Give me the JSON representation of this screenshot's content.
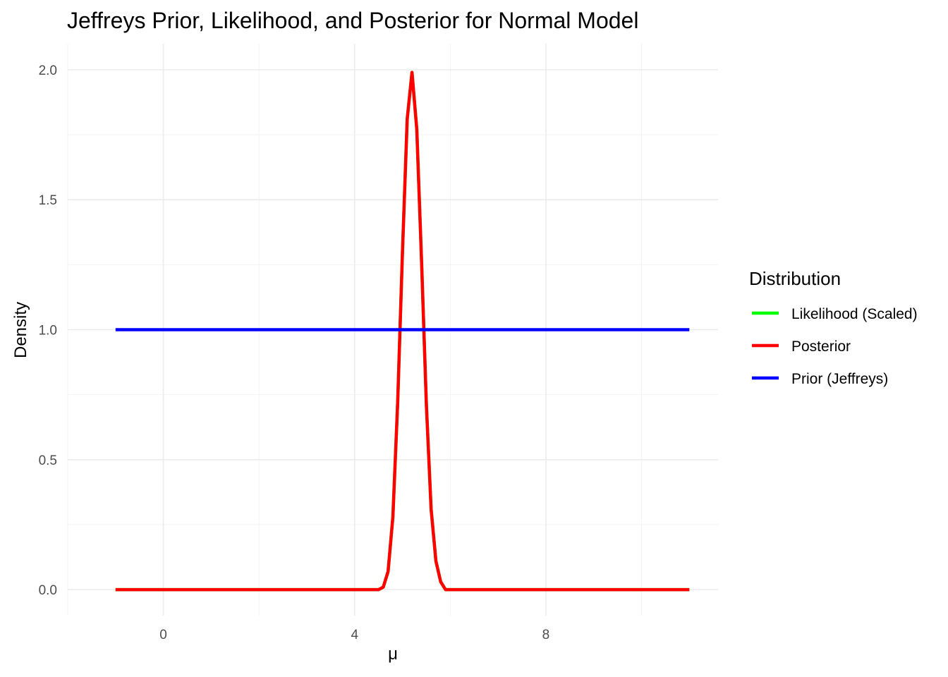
{
  "chart_data": {
    "type": "line",
    "title": "Jeffreys Prior, Likelihood, and Posterior for Normal Model",
    "xlabel": "μ",
    "ylabel": "Density",
    "xlim": [
      -2,
      11.6
    ],
    "ylim": [
      -0.1,
      2.1
    ],
    "x_ticks": [
      0,
      4,
      8
    ],
    "x_tick_labels": [
      "0",
      "4",
      "8"
    ],
    "y_ticks": [
      0.0,
      0.5,
      1.0,
      1.5,
      2.0
    ],
    "y_tick_labels": [
      "0.0",
      "0.5",
      "1.0",
      "1.5",
      "2.0"
    ],
    "grid": true,
    "legend": {
      "title": "Distribution",
      "position": "right",
      "entries": [
        "Likelihood (Scaled)",
        "Posterior",
        "Prior (Jeffreys)"
      ]
    },
    "series": [
      {
        "name": "Likelihood (Scaled)",
        "color": "#00ff00",
        "points": [
          [
            -1,
            0.0
          ],
          [
            4.5,
            0.0
          ],
          [
            4.6,
            0.01
          ],
          [
            4.7,
            0.07
          ],
          [
            4.8,
            0.28
          ],
          [
            4.9,
            0.72
          ],
          [
            5.0,
            1.3
          ],
          [
            5.1,
            1.81
          ],
          [
            5.2,
            1.99
          ],
          [
            5.3,
            1.77
          ],
          [
            5.4,
            1.26
          ],
          [
            5.5,
            0.71
          ],
          [
            5.6,
            0.31
          ],
          [
            5.7,
            0.11
          ],
          [
            5.8,
            0.03
          ],
          [
            5.9,
            0.0
          ],
          [
            11,
            0.0
          ]
        ]
      },
      {
        "name": "Posterior",
        "color": "#ff0000",
        "points": [
          [
            -1,
            0.0
          ],
          [
            4.5,
            0.0
          ],
          [
            4.6,
            0.01
          ],
          [
            4.7,
            0.07
          ],
          [
            4.8,
            0.28
          ],
          [
            4.9,
            0.72
          ],
          [
            5.0,
            1.3
          ],
          [
            5.1,
            1.81
          ],
          [
            5.2,
            1.99
          ],
          [
            5.3,
            1.77
          ],
          [
            5.4,
            1.26
          ],
          [
            5.5,
            0.71
          ],
          [
            5.6,
            0.31
          ],
          [
            5.7,
            0.11
          ],
          [
            5.8,
            0.03
          ],
          [
            5.9,
            0.0
          ],
          [
            11,
            0.0
          ]
        ]
      },
      {
        "name": "Prior (Jeffreys)",
        "color": "#0000ff",
        "points": [
          [
            -1,
            1.0
          ],
          [
            11,
            1.0
          ]
        ]
      }
    ]
  }
}
